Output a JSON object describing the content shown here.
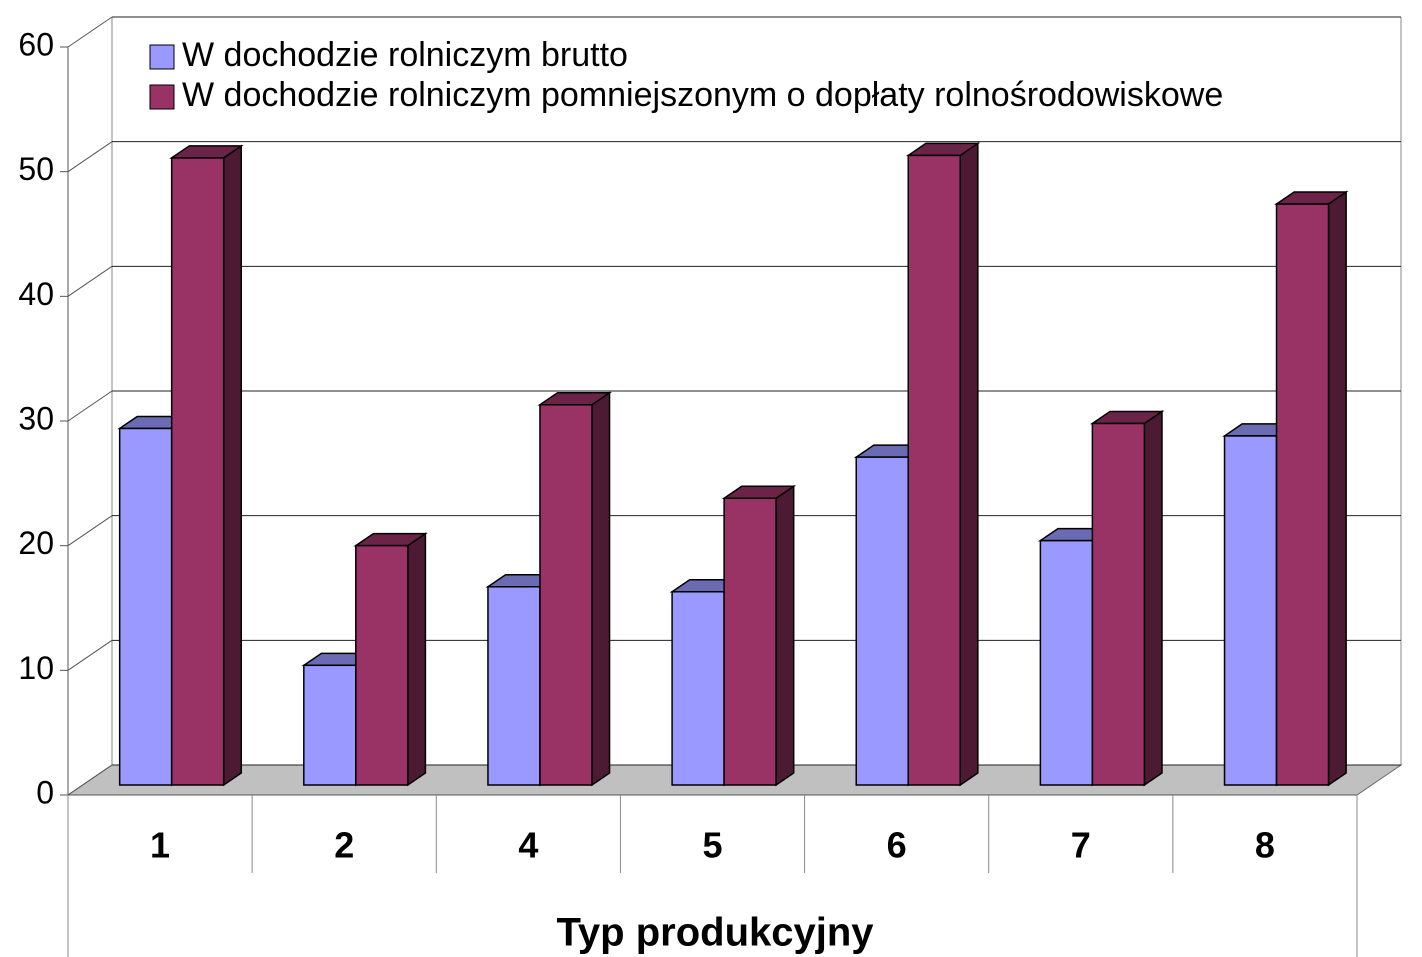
{
  "chart_data": {
    "type": "bar",
    "categories": [
      "1",
      "2",
      "4",
      "5",
      "6",
      "7",
      "8"
    ],
    "series": [
      {
        "name": "W dochodzie rolniczym brutto",
        "color": "#9999ff",
        "values": [
          28.6,
          9.6,
          15.9,
          15.5,
          26.3,
          19.6,
          28.0
        ]
      },
      {
        "name": "W dochodzie rolniczym pomniejszonym o dopłaty rolnośrodowiskowe",
        "color": "#993366",
        "values": [
          50.3,
          19.2,
          30.5,
          23.0,
          50.5,
          29.0,
          46.6
        ]
      }
    ],
    "x_label": "Typ produkcyjny",
    "ylim": [
      0,
      60
    ],
    "yticks": [
      0,
      10,
      20,
      30,
      40,
      50,
      60
    ],
    "grid": true
  }
}
